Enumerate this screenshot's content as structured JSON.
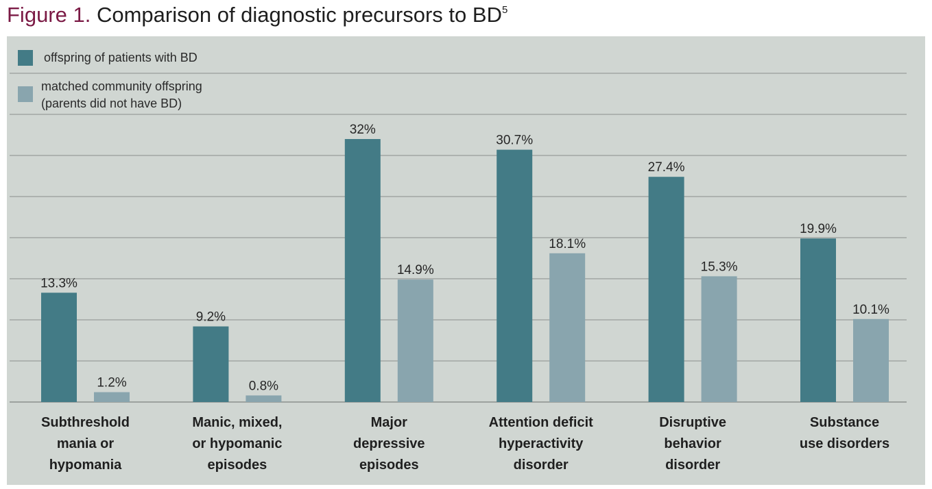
{
  "title": {
    "lead": "Figure 1.",
    "text": "Comparison of diagnostic precursors to BD",
    "superscript": "5"
  },
  "colors": {
    "series_bd": "#437b86",
    "series_community": "#89a5ae",
    "panel_background": "#d0d6d2",
    "gridline": "#8a8f8c",
    "title_lead": "#7b1a45"
  },
  "chart_data": {
    "type": "bar",
    "title": "Comparison of diagnostic precursors to BD",
    "categories": [
      [
        "Subthreshold",
        "mania or",
        "hypomania"
      ],
      [
        "Manic, mixed,",
        "or hypomanic",
        "episodes"
      ],
      [
        "Major",
        "depressive",
        "episodes"
      ],
      [
        "Attention deficit",
        "hyperactivity",
        "disorder"
      ],
      [
        "Disruptive",
        "behavior",
        "disorder"
      ],
      [
        "Substance",
        "use disorders"
      ]
    ],
    "series": [
      {
        "name": "offspring of patients with BD",
        "legend_lines": [
          "offspring of patients with BD"
        ],
        "values": [
          13.3,
          9.2,
          32,
          30.7,
          27.4,
          19.9
        ],
        "labels": [
          "13.3%",
          "9.2%",
          "32%",
          "30.7%",
          "27.4%",
          "19.9%"
        ]
      },
      {
        "name": "matched community offspring (parents did not have BD)",
        "legend_lines": [
          "matched community offspring",
          "(parents did not have BD)"
        ],
        "values": [
          1.2,
          0.8,
          14.9,
          18.1,
          15.3,
          10.1
        ],
        "labels": [
          "1.2%",
          "0.8%",
          "14.9%",
          "18.1%",
          "15.3%",
          "10.1%"
        ]
      }
    ],
    "ylim": [
      0,
      40
    ],
    "grid": true,
    "legend": "top-left",
    "xlabel": "",
    "ylabel": ""
  }
}
